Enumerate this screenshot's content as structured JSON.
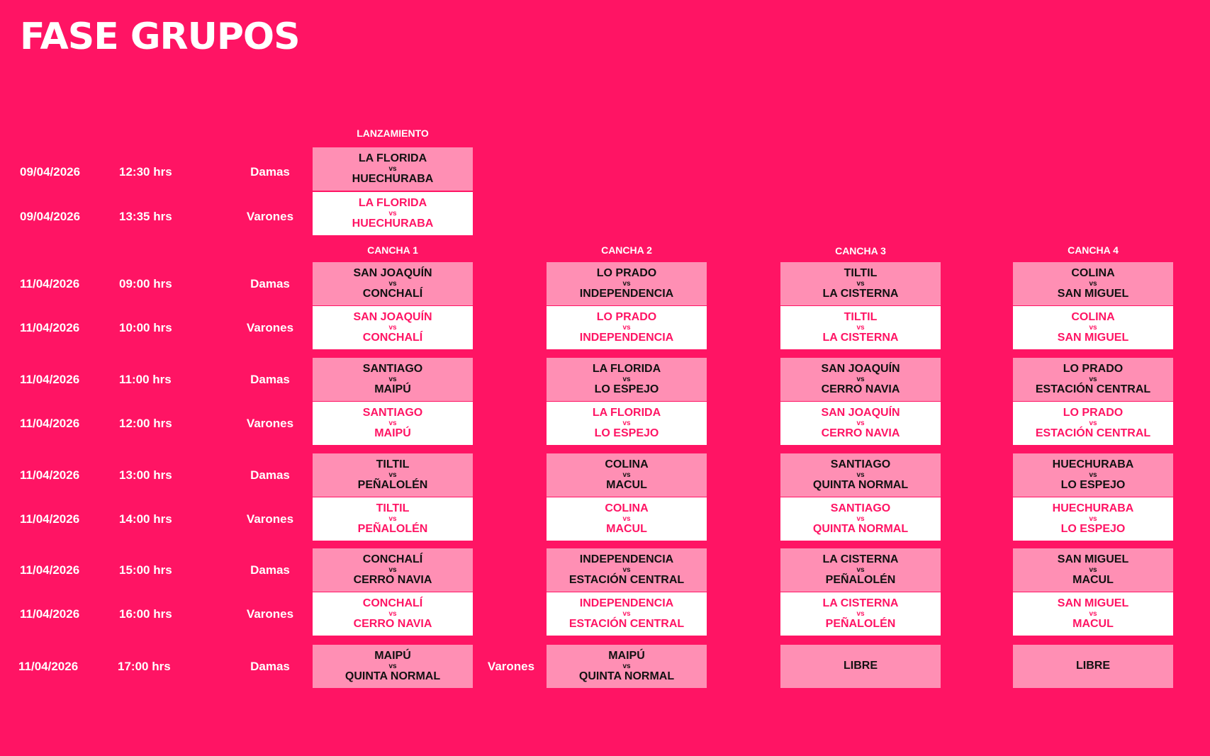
{
  "title": "FASE GRUPOS",
  "headers": {
    "lanzamiento": "LANZAMIENTO",
    "c1": "CANCHA 1",
    "c2": "CANCHA 2",
    "c3": "CANCHA 3",
    "c4": "CANCHA 4"
  },
  "vs": "vs",
  "lanz": [
    {
      "date": "09/04/2026",
      "time": "12:30 hrs",
      "cat": "Damas",
      "t1": "LA FLORIDA",
      "t2": "HUECHURABA"
    },
    {
      "date": "09/04/2026",
      "time": "13:35 hrs",
      "cat": "Varones",
      "t1": "LA FLORIDA",
      "t2": "HUECHURABA"
    }
  ],
  "rows": [
    {
      "date": "11/04/2026",
      "time": "09:00 hrs",
      "cat": "Damas",
      "m": [
        [
          "SAN JOAQUÍN",
          "CONCHALÍ"
        ],
        [
          "LO PRADO",
          "INDEPENDENCIA"
        ],
        [
          "TILTIL",
          "LA CISTERNA"
        ],
        [
          "COLINA",
          "SAN MIGUEL"
        ]
      ]
    },
    {
      "date": "11/04/2026",
      "time": "10:00 hrs",
      "cat": "Varones",
      "m": [
        [
          "SAN JOAQUÍN",
          "CONCHALÍ"
        ],
        [
          "LO PRADO",
          "INDEPENDENCIA"
        ],
        [
          "TILTIL",
          "LA CISTERNA"
        ],
        [
          "COLINA",
          "SAN MIGUEL"
        ]
      ]
    },
    {
      "date": "11/04/2026",
      "time": "11:00 hrs",
      "cat": "Damas",
      "m": [
        [
          "SANTIAGO",
          "MAIPÚ"
        ],
        [
          "LA FLORIDA",
          "LO ESPEJO"
        ],
        [
          "SAN JOAQUÍN",
          "CERRO NAVIA"
        ],
        [
          "LO PRADO",
          "ESTACIÓN CENTRAL"
        ]
      ]
    },
    {
      "date": "11/04/2026",
      "time": "12:00 hrs",
      "cat": "Varones",
      "m": [
        [
          "SANTIAGO",
          "MAIPÚ"
        ],
        [
          "LA FLORIDA",
          "LO ESPEJO"
        ],
        [
          "SAN JOAQUÍN",
          "CERRO NAVIA"
        ],
        [
          "LO PRADO",
          "ESTACIÓN CENTRAL"
        ]
      ]
    },
    {
      "date": "11/04/2026",
      "time": "13:00 hrs",
      "cat": "Damas",
      "m": [
        [
          "TILTIL",
          "PEÑALOLÉN"
        ],
        [
          "COLINA",
          "MACUL"
        ],
        [
          "SANTIAGO",
          "QUINTA NORMAL"
        ],
        [
          "HUECHURABA",
          "LO ESPEJO"
        ]
      ]
    },
    {
      "date": "11/04/2026",
      "time": "14:00 hrs",
      "cat": "Varones",
      "m": [
        [
          "TILTIL",
          "PEÑALOLÉN"
        ],
        [
          "COLINA",
          "MACUL"
        ],
        [
          "SANTIAGO",
          "QUINTA NORMAL"
        ],
        [
          "HUECHURABA",
          "LO ESPEJO"
        ]
      ]
    },
    {
      "date": "11/04/2026",
      "time": "15:00 hrs",
      "cat": "Damas",
      "m": [
        [
          "CONCHALÍ",
          "CERRO NAVIA"
        ],
        [
          "INDEPENDENCIA",
          "ESTACIÓN CENTRAL"
        ],
        [
          "LA CISTERNA",
          "PEÑALOLÉN"
        ],
        [
          "SAN MIGUEL",
          "MACUL"
        ]
      ]
    },
    {
      "date": "11/04/2026",
      "time": "16:00 hrs",
      "cat": "Varones",
      "m": [
        [
          "CONCHALÍ",
          "CERRO NAVIA"
        ],
        [
          "INDEPENDENCIA",
          "ESTACIÓN CENTRAL"
        ],
        [
          "LA CISTERNA",
          "PEÑALOLÉN"
        ],
        [
          "SAN MIGUEL",
          "MACUL"
        ]
      ]
    }
  ],
  "last": {
    "date": "11/04/2026",
    "time": "17:00 hrs",
    "cat": "Damas",
    "cat2": "Varones",
    "m1": [
      "MAIPÚ",
      "QUINTA NORMAL"
    ],
    "m2": [
      "MAIPÚ",
      "QUINTA NORMAL"
    ],
    "libre3": "LIBRE",
    "libre4": "LIBRE"
  }
}
